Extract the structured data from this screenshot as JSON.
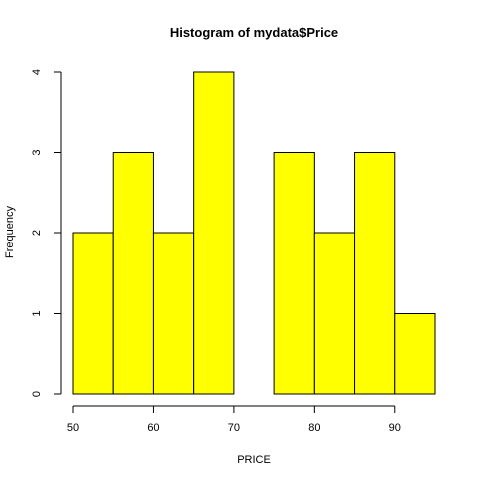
{
  "chart_data": {
    "type": "bar",
    "subtype": "histogram",
    "title": "Histogram of mydata$Price",
    "xlabel": "PRICE",
    "ylabel": "Frequency",
    "bins": [
      {
        "from": 50,
        "to": 55,
        "count": 2
      },
      {
        "from": 55,
        "to": 60,
        "count": 3
      },
      {
        "from": 60,
        "to": 65,
        "count": 2
      },
      {
        "from": 65,
        "to": 70,
        "count": 4
      },
      {
        "from": 70,
        "to": 75,
        "count": 0
      },
      {
        "from": 75,
        "to": 80,
        "count": 3
      },
      {
        "from": 80,
        "to": 85,
        "count": 2
      },
      {
        "from": 85,
        "to": 90,
        "count": 3
      },
      {
        "from": 90,
        "to": 95,
        "count": 1
      }
    ],
    "xlim": [
      50,
      95
    ],
    "ylim": [
      0,
      4
    ],
    "x_ticks": [
      "50",
      "60",
      "70",
      "80",
      "90"
    ],
    "y_ticks": [
      "0",
      "1",
      "2",
      "3",
      "4"
    ],
    "bar_color": "#ffff00",
    "border_color": "#000000",
    "grid": false
  }
}
